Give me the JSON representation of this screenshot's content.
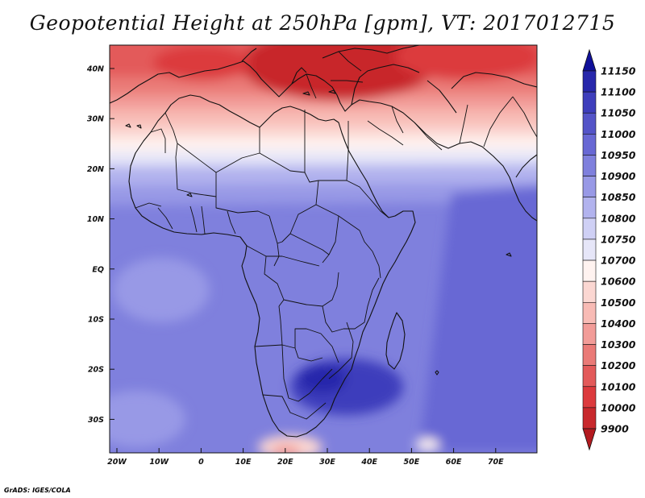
{
  "title": "Geopotential Height at 250hPa [gpm], VT: 2017012715",
  "credit": "GrADS: IGES/COLA",
  "axes": {
    "x_ticks": [
      "20W",
      "10W",
      "0",
      "10E",
      "20E",
      "30E",
      "40E",
      "50E",
      "60E",
      "70E"
    ],
    "y_ticks": [
      "40N",
      "30N",
      "20N",
      "10N",
      "EQ",
      "10S",
      "20S",
      "30S"
    ]
  },
  "colorbar": {
    "levels": [
      "9900",
      "10000",
      "10100",
      "10200",
      "10300",
      "10400",
      "10500",
      "10600",
      "10700",
      "10750",
      "10800",
      "10850",
      "10900",
      "10950",
      "11000",
      "11050",
      "11100",
      "11150"
    ],
    "colors": [
      "#b31a1f",
      "#c8282c",
      "#dc3a3d",
      "#e35a5a",
      "#ea7a77",
      "#f29c98",
      "#f8bbb5",
      "#fbd7d2",
      "#fff3f0",
      "#e6e6f8",
      "#cfd0f5",
      "#b2b3ee",
      "#9899e6",
      "#7f80dd",
      "#6868d4",
      "#5454c8",
      "#3e3ebc",
      "#2727ab",
      "#10109a"
    ]
  }
}
